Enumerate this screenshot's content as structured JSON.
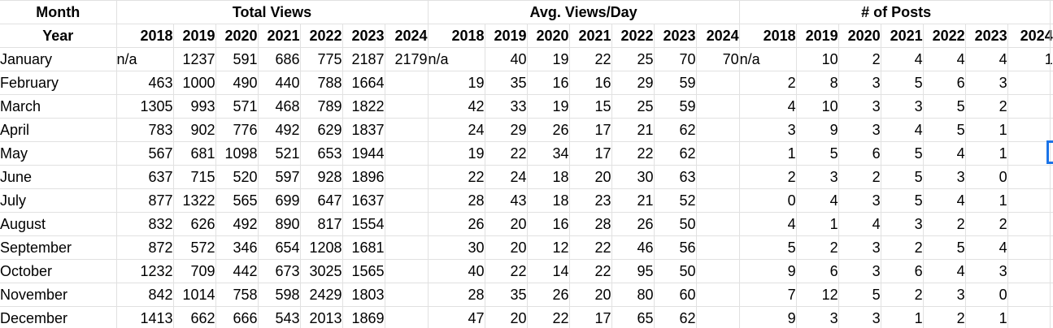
{
  "colors": {
    "selection_blue": "#1a73e8",
    "gridline_gray": "#e1e1e1"
  },
  "table": {
    "corner_top": "Month",
    "corner_bottom": "Year",
    "years": [
      "2018",
      "2019",
      "2020",
      "2021",
      "2022",
      "2023",
      "2024"
    ],
    "sections": [
      {
        "key": "total_views",
        "title": "Total Views"
      },
      {
        "key": "avg_views_day",
        "title": "Avg. Views/Day"
      },
      {
        "key": "num_posts",
        "title": "# of Posts"
      }
    ],
    "rows": [
      {
        "month": "January",
        "total_views": [
          "n/a",
          "1237",
          "591",
          "686",
          "775",
          "2187",
          "2179"
        ],
        "avg_views_day": [
          "n/a",
          "40",
          "19",
          "22",
          "25",
          "70",
          "70"
        ],
        "num_posts": [
          "n/a",
          "10",
          "2",
          "4",
          "4",
          "4",
          "1"
        ]
      },
      {
        "month": "February",
        "total_views": [
          "463",
          "1000",
          "490",
          "440",
          "788",
          "1664",
          ""
        ],
        "avg_views_day": [
          "19",
          "35",
          "16",
          "16",
          "29",
          "59",
          ""
        ],
        "num_posts": [
          "2",
          "8",
          "3",
          "5",
          "6",
          "3",
          ""
        ]
      },
      {
        "month": "March",
        "total_views": [
          "1305",
          "993",
          "571",
          "468",
          "789",
          "1822",
          ""
        ],
        "avg_views_day": [
          "42",
          "33",
          "19",
          "15",
          "25",
          "59",
          ""
        ],
        "num_posts": [
          "4",
          "10",
          "3",
          "3",
          "5",
          "2",
          ""
        ]
      },
      {
        "month": "April",
        "total_views": [
          "783",
          "902",
          "776",
          "492",
          "629",
          "1837",
          ""
        ],
        "avg_views_day": [
          "24",
          "29",
          "26",
          "17",
          "21",
          "62",
          ""
        ],
        "num_posts": [
          "3",
          "9",
          "3",
          "4",
          "5",
          "1",
          ""
        ]
      },
      {
        "month": "May",
        "total_views": [
          "567",
          "681",
          "1098",
          "521",
          "653",
          "1944",
          ""
        ],
        "avg_views_day": [
          "19",
          "22",
          "34",
          "17",
          "22",
          "62",
          ""
        ],
        "num_posts": [
          "1",
          "5",
          "6",
          "5",
          "4",
          "1",
          ""
        ]
      },
      {
        "month": "June",
        "total_views": [
          "637",
          "715",
          "520",
          "597",
          "928",
          "1896",
          ""
        ],
        "avg_views_day": [
          "22",
          "24",
          "18",
          "20",
          "30",
          "63",
          ""
        ],
        "num_posts": [
          "2",
          "3",
          "2",
          "5",
          "3",
          "0",
          ""
        ]
      },
      {
        "month": "July",
        "total_views": [
          "877",
          "1322",
          "565",
          "699",
          "647",
          "1637",
          ""
        ],
        "avg_views_day": [
          "28",
          "43",
          "18",
          "23",
          "21",
          "52",
          ""
        ],
        "num_posts": [
          "0",
          "4",
          "3",
          "5",
          "4",
          "1",
          ""
        ]
      },
      {
        "month": "August",
        "total_views": [
          "832",
          "626",
          "492",
          "890",
          "817",
          "1554",
          ""
        ],
        "avg_views_day": [
          "26",
          "20",
          "16",
          "28",
          "26",
          "50",
          ""
        ],
        "num_posts": [
          "4",
          "1",
          "4",
          "3",
          "2",
          "2",
          ""
        ]
      },
      {
        "month": "September",
        "total_views": [
          "872",
          "572",
          "346",
          "654",
          "1208",
          "1681",
          ""
        ],
        "avg_views_day": [
          "30",
          "20",
          "12",
          "22",
          "46",
          "56",
          ""
        ],
        "num_posts": [
          "5",
          "2",
          "3",
          "2",
          "5",
          "4",
          ""
        ]
      },
      {
        "month": "October",
        "total_views": [
          "1232",
          "709",
          "442",
          "673",
          "3025",
          "1565",
          ""
        ],
        "avg_views_day": [
          "40",
          "22",
          "14",
          "22",
          "95",
          "50",
          ""
        ],
        "num_posts": [
          "9",
          "6",
          "3",
          "6",
          "4",
          "3",
          ""
        ]
      },
      {
        "month": "November",
        "total_views": [
          "842",
          "1014",
          "758",
          "598",
          "2429",
          "1803",
          ""
        ],
        "avg_views_day": [
          "28",
          "35",
          "26",
          "20",
          "80",
          "60",
          ""
        ],
        "num_posts": [
          "7",
          "12",
          "5",
          "2",
          "3",
          "0",
          ""
        ]
      },
      {
        "month": "December",
        "total_views": [
          "1413",
          "662",
          "666",
          "543",
          "2013",
          "1869",
          ""
        ],
        "avg_views_day": [
          "47",
          "20",
          "22",
          "17",
          "65",
          "62",
          ""
        ],
        "num_posts": [
          "9",
          "3",
          "3",
          "1",
          "2",
          "1",
          ""
        ]
      }
    ]
  },
  "selection": {
    "row": "May",
    "note_visible_edge": true
  }
}
